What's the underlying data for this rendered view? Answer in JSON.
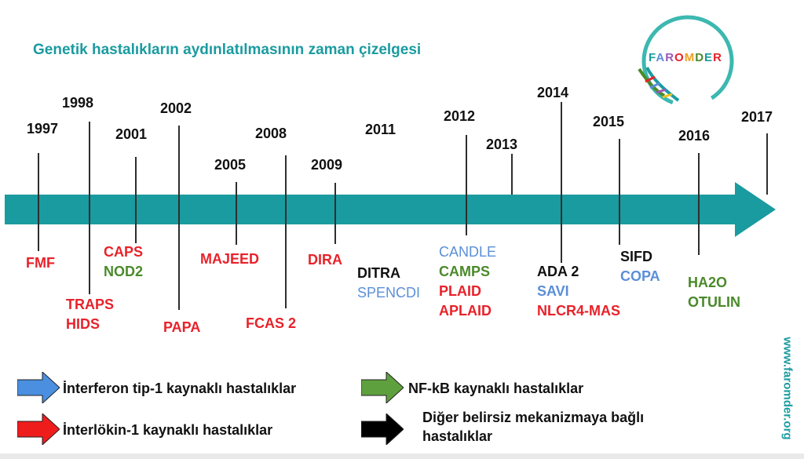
{
  "title": "Genetik hastalıkların aydınlatılmasının zaman çizelgesi",
  "logo": {
    "text": "FAROMDER"
  },
  "website": "www.faromder.org",
  "colors": {
    "teal": "#1a9ba0",
    "il1_red": "#e8222a",
    "nfkb_green": "#4a8a2a",
    "interferon_blue": "#5b8fd8",
    "other_black": "#111111"
  },
  "years": [
    "1997",
    "1998",
    "2001",
    "2002",
    "2005",
    "2008",
    "2009",
    "2011",
    "2012",
    "2013",
    "2014",
    "2015",
    "2016",
    "2017"
  ],
  "diseases": {
    "fmf": "FMF",
    "traps": "TRAPS",
    "hids": "HIDS",
    "caps": "CAPS",
    "nod2": "NOD2",
    "papa": "PAPA",
    "majeed": "MAJEED",
    "fcas2": "FCAS 2",
    "dira": "DIRA",
    "ditra": "DITRA",
    "spencdi": "SPENCDI",
    "candle": "CANDLE",
    "camps": "CAMPS",
    "plaid": "PLAID",
    "aplaid": "APLAID",
    "ada2": "ADA 2",
    "savi": "SAVI",
    "nlrc4": "NLCR4-MAS",
    "sifd": "SIFD",
    "copa": "COPA",
    "ha20": "HA2O",
    "otulin": "OTULIN"
  },
  "legend": {
    "interferon": "İnterferon tip-1 kaynaklı hastalıklar",
    "nfkb": "NF-kB kaynaklı hastalıklar",
    "il1": "İnterlökin-1 kaynaklı hastalıklar",
    "other": "Diğer belirsiz mekanizmaya bağlı hastalıklar"
  }
}
